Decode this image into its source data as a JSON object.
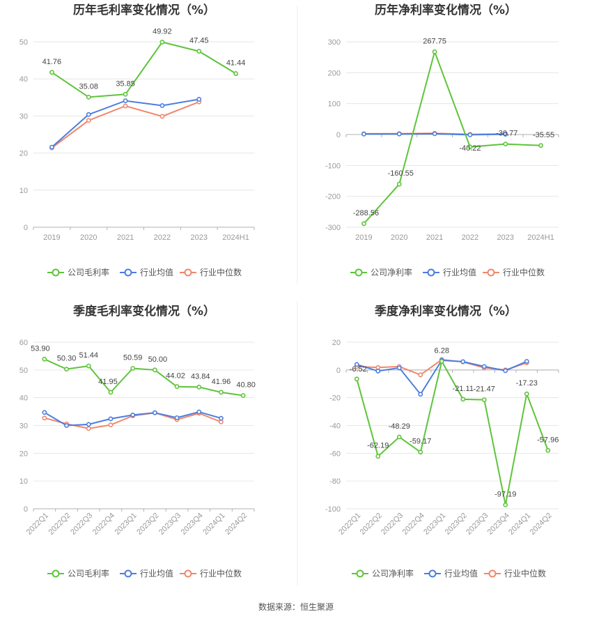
{
  "source": "数据来源：恒生聚源",
  "legend_labels": {
    "industry_avg": "行业均值",
    "industry_median": "行业中位数"
  },
  "colors": {
    "company": "#5ec43a",
    "industry_avg": "#4b7de0",
    "industry_median": "#f0876a",
    "grid": "#e6e6e6",
    "axis": "#b0b0b0"
  },
  "chart_data": [
    {
      "type": "line",
      "title": "历年毛利率变化情况（%）",
      "categories": [
        "2019",
        "2020",
        "2021",
        "2022",
        "2023",
        "2024H1"
      ],
      "ylim": [
        0,
        50
      ],
      "yticks": [
        0,
        10,
        20,
        30,
        40,
        50
      ],
      "grid": true,
      "legend": "bottom",
      "series": [
        {
          "name": "公司毛利率",
          "key": "company",
          "values": [
            41.76,
            35.08,
            35.85,
            49.92,
            47.45,
            41.44
          ],
          "labels": true
        },
        {
          "name": "行业均值",
          "key": "industry_avg",
          "values": [
            21.6,
            30.4,
            34.1,
            32.8,
            34.5,
            null
          ]
        },
        {
          "name": "行业中位数",
          "key": "industry_median",
          "values": [
            21.4,
            28.8,
            32.7,
            29.9,
            33.8,
            null
          ]
        }
      ]
    },
    {
      "type": "line",
      "title": "历年净利率变化情况（%）",
      "categories": [
        "2019",
        "2020",
        "2021",
        "2022",
        "2023",
        "2024H1"
      ],
      "ylim": [
        -300,
        300
      ],
      "yticks": [
        -300,
        -200,
        -100,
        0,
        100,
        200,
        300
      ],
      "grid": true,
      "legend": "bottom",
      "series": [
        {
          "name": "公司净利率",
          "key": "company",
          "values": [
            -288.56,
            -160.55,
            267.75,
            -40.22,
            -30.77,
            -35.55
          ],
          "labels": true
        },
        {
          "name": "行业均值",
          "key": "industry_avg",
          "values": [
            1.5,
            1.8,
            2.5,
            -1.0,
            1.0,
            null
          ]
        },
        {
          "name": "行业中位数",
          "key": "industry_median",
          "values": [
            2.5,
            3.0,
            4.0,
            0.5,
            2.0,
            null
          ]
        }
      ]
    },
    {
      "type": "line",
      "title": "季度毛利率变化情况（%）",
      "categories": [
        "2022Q1",
        "2022Q2",
        "2022Q3",
        "2022Q4",
        "2023Q1",
        "2023Q2",
        "2023Q3",
        "2023Q4",
        "2024Q1",
        "2024Q2"
      ],
      "ylim": [
        0,
        60
      ],
      "yticks": [
        0,
        10,
        20,
        30,
        40,
        50,
        60
      ],
      "grid": true,
      "legend": "bottom",
      "series": [
        {
          "name": "公司毛利率",
          "key": "company",
          "values": [
            53.9,
            50.3,
            51.44,
            41.95,
            50.59,
            50.0,
            44.02,
            43.84,
            41.96,
            40.8
          ],
          "labels": true
        },
        {
          "name": "行业均值",
          "key": "industry_avg",
          "values": [
            34.7,
            30.0,
            30.4,
            32.4,
            33.8,
            34.6,
            32.8,
            34.9,
            32.6,
            null
          ]
        },
        {
          "name": "行业中位数",
          "key": "industry_median",
          "values": [
            32.7,
            30.6,
            28.9,
            30.2,
            33.5,
            34.6,
            32.1,
            34.4,
            31.3,
            null
          ]
        }
      ]
    },
    {
      "type": "line",
      "title": "季度净利率变化情况（%）",
      "categories": [
        "2022Q1",
        "2022Q2",
        "2022Q3",
        "2022Q4",
        "2023Q1",
        "2023Q2",
        "2023Q3",
        "2023Q4",
        "2024Q1",
        "2024Q2"
      ],
      "ylim": [
        -100,
        20
      ],
      "yticks": [
        -100,
        -80,
        -60,
        -40,
        -20,
        0,
        20
      ],
      "grid": true,
      "legend": "bottom",
      "series": [
        {
          "name": "公司净利率",
          "key": "company",
          "values": [
            -6.52,
            -62.19,
            -48.29,
            -59.17,
            6.28,
            -21.11,
            -21.47,
            -97.19,
            -17.23,
            -57.96
          ],
          "labels": true
        },
        {
          "name": "行业均值",
          "key": "industry_avg",
          "values": [
            4.0,
            -0.8,
            1.5,
            -17.5,
            7.0,
            6.0,
            2.5,
            -0.5,
            6.2,
            null
          ]
        },
        {
          "name": "行业中位数",
          "key": "industry_median",
          "values": [
            2.5,
            1.8,
            2.5,
            -3.5,
            7.5,
            5.8,
            1.5,
            0.0,
            5.2,
            null
          ]
        }
      ]
    }
  ]
}
